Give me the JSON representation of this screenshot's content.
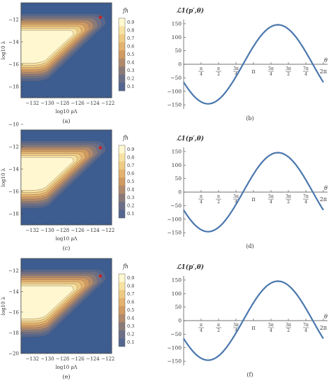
{
  "chart_data": [
    {
      "type": "heatmap",
      "panel_label": "(a)",
      "xlabel": "log10 ρΛ",
      "ylabel": "log10 λ",
      "xlim": [
        -133.5,
        -121.5
      ],
      "ylim": [
        -19,
        -10.5
      ],
      "x_ticks": [
        "-132",
        "-130",
        "-128",
        "-126",
        "-124",
        "-122"
      ],
      "y_ticks": [
        "-12",
        "-14",
        "-16",
        "-18"
      ],
      "legend_title": "fh",
      "legend_ticks": [
        "0.9",
        "0.8",
        "0.7",
        "0.6",
        "0.5",
        "0.4",
        "0.3",
        "0.2",
        "0.1"
      ],
      "marker": {
        "x": -123,
        "y": -11.8
      }
    },
    {
      "type": "line",
      "panel_label": "(b)",
      "title": "ℒ1(p′,θ)",
      "xlabel": "θ",
      "ylim": [
        -160,
        155
      ],
      "y_ticks": [
        "150",
        "100",
        "50",
        "0",
        "-50",
        "-100",
        "-150"
      ],
      "x_tick_labels": [
        "π/4",
        "π/2",
        "3π/4",
        "π",
        "5π/4",
        "3π/2",
        "7π/4",
        "2π"
      ],
      "series": [
        {
          "amplitude": 146,
          "peak_theta_pi": 1.35
        }
      ]
    },
    {
      "type": "heatmap",
      "panel_label": "(c)",
      "xlabel": "log10 ρΛ",
      "ylabel": "log10 λ",
      "xlim": [
        -133.5,
        -121.5
      ],
      "ylim": [
        -19,
        -10.5
      ],
      "x_ticks": [
        "-132",
        "-130",
        "-128",
        "-126",
        "-124",
        "-122"
      ],
      "y_ticks": [
        "-10",
        "-12",
        "-14",
        "-16",
        "-18"
      ],
      "legend_title": "fh",
      "legend_ticks": [
        "0.9",
        "0.8",
        "0.7",
        "0.6",
        "0.5",
        "0.4",
        "0.3",
        "0.2",
        "0.1"
      ],
      "marker": {
        "x": -123,
        "y": -12.1
      }
    },
    {
      "type": "line",
      "panel_label": "(d)",
      "title": "ℒ1(p′,θ)",
      "xlabel": "θ",
      "ylim": [
        -160,
        155
      ],
      "y_ticks": [
        "150",
        "100",
        "50",
        "0",
        "-50",
        "-100",
        "-150"
      ],
      "x_tick_labels": [
        "π/4",
        "π/2",
        "3π/4",
        "π",
        "5π/4",
        "3π/2",
        "7π/4",
        "2π"
      ],
      "series": [
        {
          "amplitude": 146,
          "peak_theta_pi": 1.35
        }
      ]
    },
    {
      "type": "heatmap",
      "panel_label": "(e)",
      "xlabel": "log10 ρΛ",
      "ylabel": "log10 λ",
      "xlim": [
        -133.5,
        -121.5
      ],
      "ylim": [
        -20,
        -10.8
      ],
      "x_ticks": [
        "-132",
        "-130",
        "-128",
        "-126",
        "-124",
        "-122"
      ],
      "y_ticks": [
        "-12",
        "-14",
        "-16",
        "-18",
        "-20"
      ],
      "legend_title": "fh",
      "legend_ticks": [
        "0.9",
        "0.8",
        "0.7",
        "0.6",
        "0.5",
        "0.4",
        "0.3",
        "0.2",
        "0.1"
      ],
      "marker": {
        "x": -123,
        "y": -12.5
      }
    },
    {
      "type": "line",
      "panel_label": "(f)",
      "title": "ℒ1(p′,θ)",
      "xlabel": "θ",
      "ylim": [
        -160,
        155
      ],
      "y_ticks": [
        "150",
        "100",
        "50",
        "0",
        "-50",
        "-100",
        "-150"
      ],
      "x_tick_labels": [
        "π/4",
        "π/2",
        "3π/4",
        "π",
        "5π/4",
        "3π/2",
        "7π/4",
        "2π"
      ],
      "series": [
        {
          "amplitude": 146,
          "peak_theta_pi": 1.35
        }
      ]
    }
  ],
  "colors": {
    "background": "#3d5c8f",
    "bands": [
      "#fff7cf",
      "#f7e2a3",
      "#eecb83",
      "#e3b26d",
      "#d09a61",
      "#b18a6c",
      "#8a7b79",
      "#6c6f87",
      "#54668f"
    ],
    "curve": "#4a77ad",
    "marker": "#cc1f1f"
  }
}
